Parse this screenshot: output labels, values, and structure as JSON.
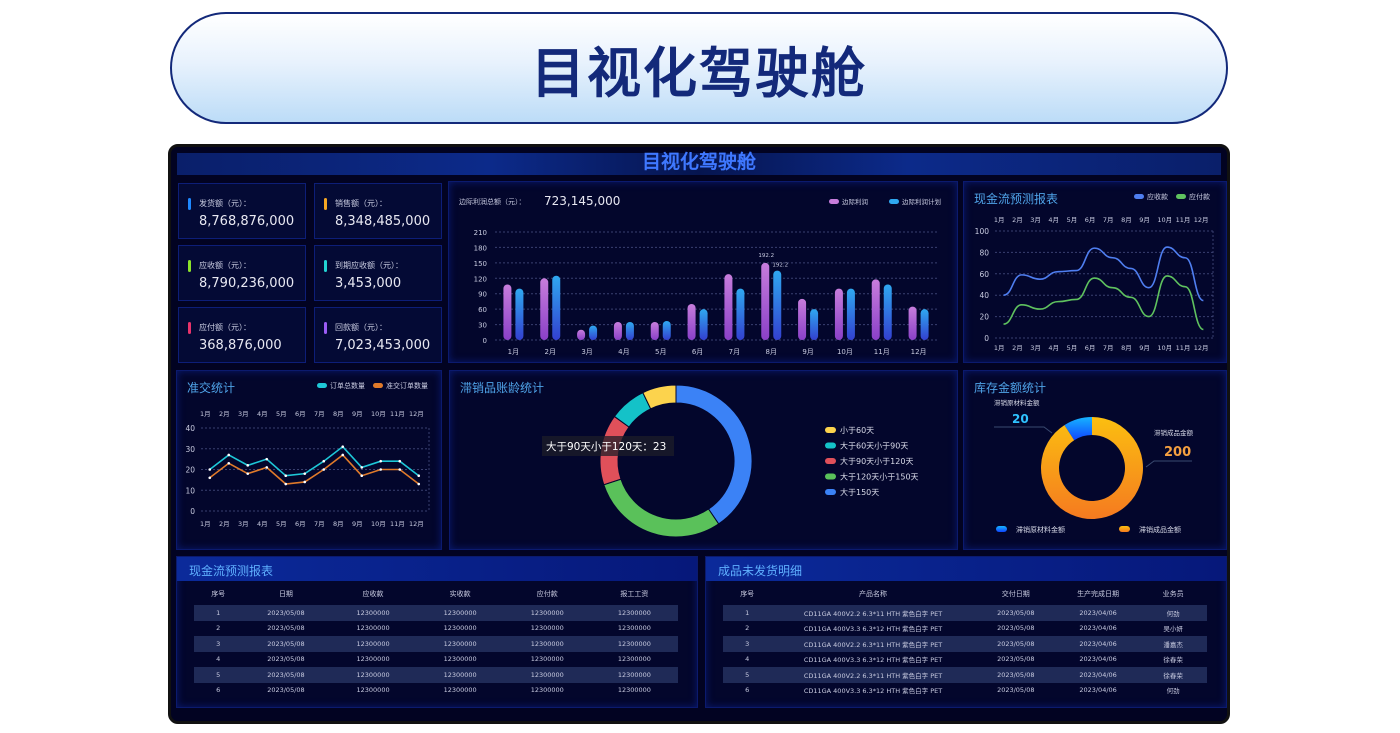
{
  "header": {
    "title": "目视化驾驶舱"
  },
  "dashboard": {
    "title": "目视化驾驶舱"
  },
  "kpis": [
    {
      "label": "发货额（元）：",
      "value": "8,768,876,000",
      "color": "#1e88ff"
    },
    {
      "label": "销售额（元）：",
      "value": "8,348,485,000",
      "color": "#f5a623"
    },
    {
      "label": "应收额（元）：",
      "value": "8,790,236,000",
      "color": "#8be22a"
    },
    {
      "label": "到期应收额（元）：",
      "value": "3,453,000",
      "color": "#22d3d3"
    },
    {
      "label": "应付额（元）：",
      "value": "368,876,000",
      "color": "#e8336b"
    },
    {
      "label": "回款额（元）：",
      "value": "7,023,453,000",
      "color": "#9b5cf5"
    }
  ],
  "chart_data": [
    {
      "type": "bar",
      "label": "边际利润总额（元）：",
      "total": "723,145,000",
      "categories": [
        "1月",
        "2月",
        "3月",
        "4月",
        "5月",
        "6月",
        "7月",
        "8月",
        "9月",
        "10月",
        "11月",
        "12月"
      ],
      "ylim": [
        0,
        210
      ],
      "yticks": [
        0,
        30,
        60,
        90,
        120,
        150,
        180,
        210
      ],
      "grid": true,
      "legend": "top-right",
      "series": [
        {
          "name": "边际利润",
          "values": [
            108,
            120,
            20,
            35,
            35,
            70,
            128,
            150,
            80,
            100,
            118,
            65
          ],
          "color": "#c77ddc"
        },
        {
          "name": "边际利润计划",
          "values": [
            100,
            125,
            28,
            35,
            37,
            60,
            100,
            135,
            60,
            100,
            108,
            60
          ],
          "color": "#2fa8f0"
        }
      ],
      "annotations": [
        "192.2",
        "192.2"
      ]
    },
    {
      "type": "line",
      "title": "现金流预测报表",
      "categories": [
        "1月",
        "2月",
        "3月",
        "4月",
        "5月",
        "6月",
        "7月",
        "8月",
        "9月",
        "10月",
        "11月",
        "12月"
      ],
      "ylim": [
        0,
        100
      ],
      "yticks": [
        0,
        20,
        40,
        60,
        80,
        100
      ],
      "grid": true,
      "legend": "top-right",
      "series": [
        {
          "name": "应收款",
          "values": [
            40,
            59,
            55,
            62,
            63,
            84,
            75,
            65,
            47,
            85,
            75,
            35
          ],
          "color": "#4f7ef0"
        },
        {
          "name": "应付款",
          "values": [
            13,
            31,
            27,
            34,
            36,
            56,
            47,
            38,
            20,
            58,
            48,
            8
          ],
          "color": "#5fc25f"
        }
      ]
    },
    {
      "type": "line",
      "title": "准交统计",
      "categories": [
        "1月",
        "2月",
        "3月",
        "4月",
        "5月",
        "6月",
        "7月",
        "8月",
        "9月",
        "10月",
        "11月",
        "12月"
      ],
      "ylim": [
        0,
        40
      ],
      "yticks": [
        0,
        10,
        20,
        30,
        40
      ],
      "grid": true,
      "legend": "top-right",
      "series": [
        {
          "name": "订单总数量",
          "values": [
            20,
            27,
            22,
            25,
            17,
            18,
            24,
            31,
            21,
            24,
            24,
            17
          ],
          "color": "#1ec8d8"
        },
        {
          "name": "准交订单数量",
          "values": [
            16,
            23,
            18,
            21,
            13,
            14,
            20,
            27,
            17,
            20,
            20,
            13
          ],
          "color": "#e07a2a"
        }
      ]
    },
    {
      "type": "pie",
      "title": "滞销品账龄统计",
      "legend": "right",
      "tooltip": "大于90天小于120天：23",
      "slices": [
        {
          "name": "大于150天",
          "value": 62,
          "color": "#3b82f6"
        },
        {
          "name": "大于120天小于150天",
          "value": 45,
          "color": "#5ac15a"
        },
        {
          "name": "大于90天小于120天",
          "value": 23,
          "color": "#e0505a"
        },
        {
          "name": "大于60天小于90天",
          "value": 12,
          "color": "#14c2c8"
        },
        {
          "name": "小于60天",
          "value": 11,
          "color": "#fcd34d"
        }
      ],
      "legend_order": [
        "小于60天",
        "大于60天小于90天",
        "大于90天小于120天",
        "大于120天小于150天",
        "大于150天"
      ]
    },
    {
      "type": "pie",
      "title": "库存金额统计",
      "legend": "bottom",
      "slices": [
        {
          "name": "滞销原材料金额",
          "value": 20,
          "color": "#1e7cff"
        },
        {
          "name": "滞销成品金额",
          "value": 200,
          "color": "#f9a516"
        }
      ]
    }
  ],
  "table1": {
    "title": "现金流预测报表",
    "columns": [
      "序号",
      "日期",
      "应收款",
      "实收款",
      "应付款",
      "报工工资"
    ],
    "rows": [
      [
        "1",
        "2023/05/08",
        "12300000",
        "12300000",
        "12300000",
        "12300000"
      ],
      [
        "2",
        "2023/05/08",
        "12300000",
        "12300000",
        "12300000",
        "12300000"
      ],
      [
        "3",
        "2023/05/08",
        "12300000",
        "12300000",
        "12300000",
        "12300000"
      ],
      [
        "4",
        "2023/05/08",
        "12300000",
        "12300000",
        "12300000",
        "12300000"
      ],
      [
        "5",
        "2023/05/08",
        "12300000",
        "12300000",
        "12300000",
        "12300000"
      ],
      [
        "6",
        "2023/05/08",
        "12300000",
        "12300000",
        "12300000",
        "12300000"
      ]
    ]
  },
  "table2": {
    "title": "成品未发货明细",
    "columns": [
      "序号",
      "产品名称",
      "交付日期",
      "生产完成日期",
      "业务员"
    ],
    "rows": [
      [
        "1",
        "CD11GA 400V2.2 6.3*11 HTH 紫色白字 PET",
        "2023/05/08",
        "2023/04/06",
        "何劲"
      ],
      [
        "2",
        "CD11GA 400V3.3 6.3*12 HTH 紫色白字 PET",
        "2023/05/08",
        "2023/04/06",
        "吴小妍"
      ],
      [
        "3",
        "CD11GA 400V2.2 6.3*11 HTH 紫色白字 PET",
        "2023/05/08",
        "2023/04/06",
        "潘嘉杰"
      ],
      [
        "4",
        "CD11GA 400V3.3 6.3*12 HTH 紫色白字 PET",
        "2023/05/08",
        "2023/04/06",
        "徐春荣"
      ],
      [
        "5",
        "CD11GA 400V2.2 6.3*11 HTH 紫色白字 PET",
        "2023/05/08",
        "2023/04/06",
        "徐春荣"
      ],
      [
        "6",
        "CD11GA 400V3.3 6.3*12 HTH 紫色白字 PET",
        "2023/05/08",
        "2023/04/06",
        "何劲"
      ]
    ]
  }
}
